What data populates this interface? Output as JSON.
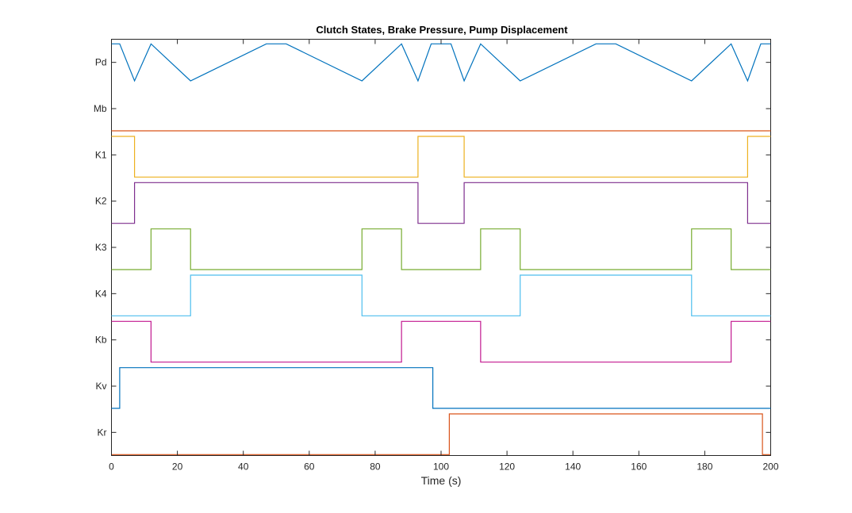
{
  "chart_data": {
    "type": "line",
    "title": "Clutch States, Brake Pressure, Pump Displacement",
    "xlabel": "Time (s)",
    "ylabel": "",
    "xlim": [
      0,
      200
    ],
    "ylim": [
      0,
      9
    ],
    "xticks": [
      0,
      20,
      40,
      60,
      80,
      100,
      120,
      140,
      160,
      180,
      200
    ],
    "ytick_labels": [
      "Pd",
      "Mb",
      "K1",
      "K2",
      "K3",
      "K4",
      "Kb",
      "Kv",
      "Kr"
    ],
    "grid": false,
    "series": [
      {
        "key": "Pd",
        "color": "#0072BD",
        "x": [
          0,
          2.5,
          7,
          12,
          24,
          47,
          53,
          76,
          88,
          93,
          97,
          103,
          107,
          112,
          124,
          147,
          153,
          176,
          188,
          193,
          197,
          200
        ],
        "y": [
          0.9,
          0.9,
          0.1,
          0.9,
          0.1,
          0.9,
          0.9,
          0.1,
          0.9,
          0.1,
          0.9,
          0.9,
          0.1,
          0.9,
          0.1,
          0.9,
          0.9,
          0.1,
          0.9,
          0.1,
          0.9,
          0.9
        ]
      },
      {
        "key": "Mb",
        "color": "#D95319",
        "x": [
          0,
          200
        ],
        "y": [
          0.02,
          0.02
        ]
      },
      {
        "key": "K1",
        "color": "#EDB120",
        "x": [
          0,
          7,
          7,
          93,
          93,
          107,
          107,
          193,
          193,
          200
        ],
        "y": [
          0.9,
          0.9,
          0.02,
          0.02,
          0.9,
          0.9,
          0.02,
          0.02,
          0.9,
          0.9
        ]
      },
      {
        "key": "K2",
        "color": "#7E2F8E",
        "x": [
          0,
          7,
          7,
          93,
          93,
          107,
          107,
          193,
          193,
          200
        ],
        "y": [
          0.02,
          0.02,
          0.9,
          0.9,
          0.02,
          0.02,
          0.9,
          0.9,
          0.02,
          0.02
        ]
      },
      {
        "key": "K3",
        "color": "#77AC30",
        "x": [
          0,
          12,
          12,
          24,
          24,
          76,
          76,
          88,
          88,
          112,
          112,
          124,
          124,
          176,
          176,
          188,
          188,
          200
        ],
        "y": [
          0.02,
          0.02,
          0.9,
          0.9,
          0.02,
          0.02,
          0.9,
          0.9,
          0.02,
          0.02,
          0.9,
          0.9,
          0.02,
          0.02,
          0.9,
          0.9,
          0.02,
          0.02
        ]
      },
      {
        "key": "K4",
        "color": "#4DBEEE",
        "x": [
          0,
          24,
          24,
          76,
          76,
          124,
          124,
          176,
          176,
          200
        ],
        "y": [
          0.02,
          0.02,
          0.9,
          0.9,
          0.02,
          0.02,
          0.9,
          0.9,
          0.02,
          0.02
        ]
      },
      {
        "key": "Kb",
        "color": "#C2178F",
        "x": [
          0,
          12,
          12,
          88,
          88,
          112,
          112,
          188,
          188,
          200
        ],
        "y": [
          0.9,
          0.9,
          0.02,
          0.02,
          0.9,
          0.9,
          0.02,
          0.02,
          0.9,
          0.9
        ]
      },
      {
        "key": "Kv",
        "color": "#0072BD",
        "x": [
          0,
          2.5,
          2.5,
          97.5,
          97.5,
          200
        ],
        "y": [
          0.02,
          0.02,
          0.9,
          0.9,
          0.02,
          0.02
        ]
      },
      {
        "key": "Kr",
        "color": "#D95319",
        "x": [
          0,
          102.5,
          102.5,
          197.5,
          197.5,
          200
        ],
        "y": [
          0.02,
          0.02,
          0.9,
          0.9,
          0.02,
          0.02
        ]
      }
    ]
  }
}
